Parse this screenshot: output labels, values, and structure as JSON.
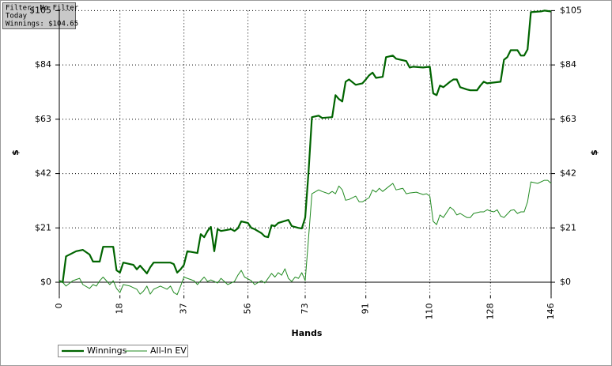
{
  "info": {
    "lines": [
      "Filter: No Filter",
      "Today",
      "Winnings: $104.65"
    ]
  },
  "chart_data": {
    "type": "line",
    "xlabel": "Hands",
    "ylabel": "$",
    "y2label": "$",
    "xlim": [
      0,
      146
    ],
    "xticks": [
      0,
      18,
      37,
      56,
      73,
      91,
      110,
      128,
      146
    ],
    "ylim": [
      -5,
      105
    ],
    "yticks": [
      {
        "value": 0,
        "label": "$0"
      },
      {
        "value": 21,
        "label": "$21"
      },
      {
        "value": 42,
        "label": "$42"
      },
      {
        "value": 63,
        "label": "$63"
      },
      {
        "value": 84,
        "label": "$84"
      },
      {
        "value": 105,
        "label": "$105"
      }
    ],
    "y2lim": [
      -5,
      105
    ],
    "y2ticks": [
      {
        "value": 0,
        "label": "$0"
      },
      {
        "value": 21,
        "label": "$21"
      },
      {
        "value": 42,
        "label": "$42"
      },
      {
        "value": 63,
        "label": "$63"
      },
      {
        "value": 84,
        "label": "$84"
      },
      {
        "value": 105,
        "label": "$105"
      }
    ],
    "grid": true,
    "series": [
      {
        "name": "Winnings",
        "color": "#006400",
        "x": [
          0,
          1,
          2,
          5,
          7,
          9,
          10,
          12,
          13,
          16,
          17,
          18,
          19,
          22,
          23,
          24,
          26,
          27,
          28,
          33,
          34,
          35,
          36,
          37,
          38,
          41,
          42,
          43,
          44,
          45,
          46,
          47,
          48,
          51,
          52,
          53,
          54,
          56,
          57,
          58,
          60,
          61,
          62,
          63,
          64,
          65,
          68,
          69,
          71,
          72,
          73,
          74,
          75,
          77,
          78,
          81,
          82,
          83,
          84,
          85,
          86,
          88,
          90,
          91,
          92,
          93,
          94,
          96,
          97,
          99,
          100,
          103,
          104,
          105,
          108,
          110,
          111,
          112,
          113,
          114,
          116,
          117,
          118,
          119,
          121,
          122,
          124,
          125,
          126,
          127,
          129,
          131,
          132,
          133,
          134,
          136,
          137,
          138,
          139,
          140,
          143,
          144,
          146
        ],
        "values": [
          0.5,
          0,
          10,
          12,
          12.5,
          10.7,
          8,
          8,
          13.7,
          13.7,
          4.6,
          3.7,
          7.6,
          6.7,
          5,
          6.4,
          3.4,
          5.8,
          7.6,
          7.6,
          7,
          3.7,
          5,
          6.7,
          12,
          11.3,
          18.6,
          17.4,
          19.8,
          21.4,
          12,
          20.5,
          19.8,
          20.5,
          19.8,
          20.8,
          23.5,
          22.9,
          21,
          20.5,
          19,
          17.7,
          17.4,
          22,
          21.7,
          22.9,
          24.1,
          21.7,
          21,
          20.8,
          25,
          43,
          63.8,
          64.4,
          63.5,
          63.8,
          72.3,
          70.8,
          69.9,
          77.5,
          78.4,
          76.3,
          76.9,
          78.4,
          80,
          81,
          79,
          79.4,
          87,
          87.6,
          86.4,
          85.5,
          83,
          83.3,
          83,
          83.3,
          73,
          72.3,
          76,
          75.4,
          77.5,
          78.4,
          78.4,
          75.4,
          74.5,
          74.2,
          74.2,
          76,
          77.5,
          76.9,
          77.2,
          77.5,
          86,
          87,
          89.7,
          89.7,
          87.6,
          87.6,
          90,
          104.4,
          104.7,
          105,
          104.65
        ]
      },
      {
        "name": "All-In EV",
        "color": "#228b22",
        "x": [
          0,
          1,
          2,
          4,
          6,
          7,
          9,
          10,
          11,
          12,
          13,
          15,
          16,
          17,
          18,
          19,
          21,
          23,
          24,
          25,
          26,
          27,
          28,
          30,
          32,
          33,
          34,
          35,
          36,
          37,
          38,
          40,
          41,
          42,
          43,
          44,
          45,
          47,
          48,
          50,
          52,
          53,
          54,
          55,
          57,
          58,
          60,
          61,
          62,
          63,
          64,
          65,
          66,
          67,
          68,
          69,
          70,
          71,
          72,
          73,
          74,
          75,
          77,
          78,
          80,
          81,
          82,
          83,
          84,
          85,
          86,
          88,
          89,
          90,
          92,
          93,
          94,
          95,
          96,
          98,
          99,
          100,
          102,
          103,
          104,
          106,
          108,
          109,
          110,
          111,
          112,
          113,
          114,
          116,
          117,
          118,
          119,
          121,
          122,
          123,
          125,
          126,
          127,
          128,
          129,
          130,
          131,
          132,
          134,
          135,
          136,
          137,
          138,
          139,
          140,
          142,
          144,
          145,
          146
        ],
        "values": [
          0.3,
          0,
          -1.5,
          0.6,
          1.5,
          -0.9,
          -2.4,
          -0.9,
          -1.5,
          0.6,
          2,
          -0.9,
          0.6,
          -2.4,
          -4,
          -0.9,
          -1.5,
          -2.7,
          -4.6,
          -3.4,
          -1.5,
          -4.6,
          -2.7,
          -1.5,
          -2.7,
          -1.5,
          -4,
          -4.8,
          -1.5,
          2,
          1.5,
          0.6,
          -0.9,
          0.6,
          2,
          0.3,
          0.9,
          -0.3,
          1.5,
          -0.9,
          0.3,
          2.7,
          4.6,
          2,
          0.6,
          -0.9,
          0.6,
          -0.3,
          1.5,
          3.4,
          2,
          3.7,
          2.7,
          5.2,
          1.5,
          0.3,
          2,
          1.5,
          3.7,
          0.6,
          17.4,
          34.2,
          35.7,
          35.1,
          34.2,
          35.1,
          34.2,
          37.2,
          35.7,
          31.7,
          32,
          33.3,
          31.1,
          31.1,
          32.7,
          35.7,
          34.8,
          36.3,
          35.1,
          37.2,
          38.2,
          35.7,
          36.3,
          34.2,
          34.5,
          34.8,
          33.9,
          34.2,
          33.3,
          23.5,
          22.3,
          26,
          25,
          29,
          28,
          26,
          26.6,
          25,
          25,
          26.6,
          27.2,
          27.2,
          28,
          27.5,
          27.2,
          28,
          25.6,
          25,
          27.8,
          28,
          26.6,
          27.2,
          27.2,
          31.1,
          38.8,
          38.2,
          39.4,
          39.4,
          38.2
        ]
      }
    ]
  }
}
